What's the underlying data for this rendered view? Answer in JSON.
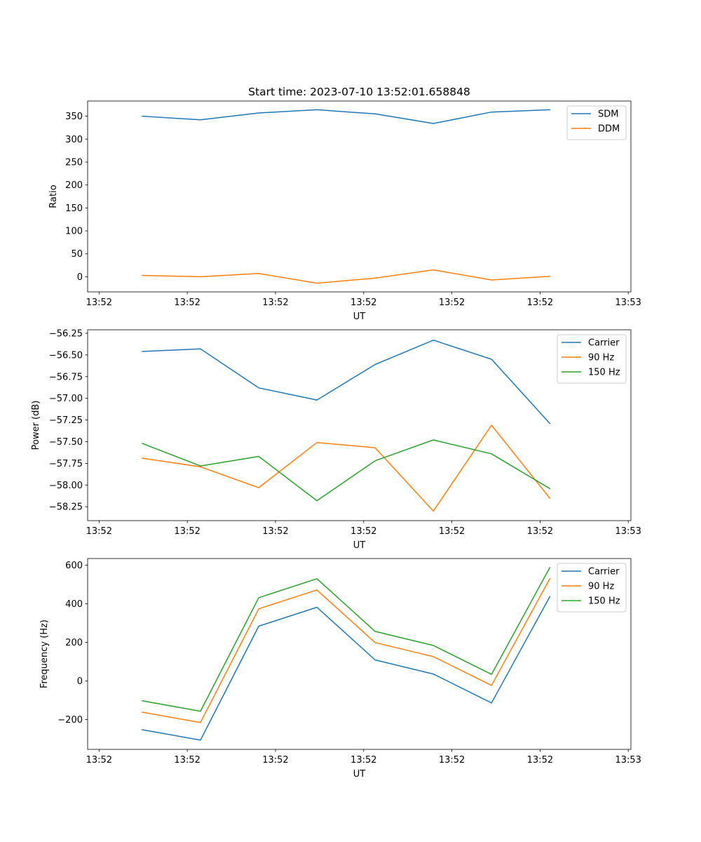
{
  "chart_data": [
    {
      "type": "line",
      "title": "Start time: 2023-07-10 13:52:01.658848",
      "xlabel": "UT",
      "ylabel": "Ratio",
      "x_tick_labels": [
        "13:52",
        "13:52",
        "13:52",
        "13:52",
        "13:52",
        "13:52",
        "13:53"
      ],
      "x_ticks": [
        0,
        1,
        2,
        3,
        4,
        5,
        6
      ],
      "xlim": [
        -0.13,
        6.03
      ],
      "ylim": [
        -33,
        383
      ],
      "y_ticks": [
        0,
        50,
        100,
        150,
        200,
        250,
        300,
        350
      ],
      "y_tick_labels": [
        "0",
        "50",
        "100",
        "150",
        "200",
        "250",
        "300",
        "350"
      ],
      "legend_position": "upper right",
      "x": [
        0.49,
        1.15,
        1.81,
        2.47,
        3.13,
        3.79,
        4.45,
        5.11
      ],
      "series": [
        {
          "name": "SDM",
          "color": "#1f77b4",
          "values": [
            350,
            342,
            357,
            364,
            355,
            334,
            359,
            364
          ]
        },
        {
          "name": "DDM",
          "color": "#ff7f0e",
          "values": [
            3,
            0,
            7,
            -14,
            -3,
            15,
            -7,
            1
          ]
        }
      ]
    },
    {
      "type": "line",
      "title": "",
      "xlabel": "UT",
      "ylabel": "Power (dB)",
      "x_tick_labels": [
        "13:52",
        "13:52",
        "13:52",
        "13:52",
        "13:52",
        "13:52",
        "13:53"
      ],
      "x_ticks": [
        0,
        1,
        2,
        3,
        4,
        5,
        6
      ],
      "xlim": [
        -0.13,
        6.03
      ],
      "ylim": [
        -58.41,
        -56.21
      ],
      "y_ticks": [
        -56.25,
        -56.5,
        -56.75,
        -57.0,
        -57.25,
        -57.5,
        -57.75,
        -58.0,
        -58.25
      ],
      "y_tick_labels": [
        "−56.25",
        "−56.50",
        "−56.75",
        "−57.00",
        "−57.25",
        "−57.50",
        "−57.75",
        "−58.00",
        "−58.25"
      ],
      "legend_position": "upper right",
      "x": [
        0.49,
        1.15,
        1.81,
        2.47,
        3.13,
        3.79,
        4.45,
        5.11
      ],
      "series": [
        {
          "name": "Carrier",
          "color": "#1f77b4",
          "values": [
            -56.46,
            -56.43,
            -56.88,
            -57.02,
            -56.61,
            -56.33,
            -56.55,
            -57.29
          ]
        },
        {
          "name": "90 Hz",
          "color": "#ff7f0e",
          "values": [
            -57.69,
            -57.79,
            -58.03,
            -57.51,
            -57.57,
            -58.3,
            -57.31,
            -58.15
          ]
        },
        {
          "name": "150 Hz",
          "color": "#2ca02c",
          "values": [
            -57.52,
            -57.78,
            -57.67,
            -58.18,
            -57.72,
            -57.48,
            -57.64,
            -58.04
          ]
        }
      ]
    },
    {
      "type": "line",
      "title": "",
      "xlabel": "UT",
      "ylabel": "Frequency (Hz)",
      "x_tick_labels": [
        "13:52",
        "13:52",
        "13:52",
        "13:52",
        "13:52",
        "13:52",
        "13:53"
      ],
      "x_ticks": [
        0,
        1,
        2,
        3,
        4,
        5,
        6
      ],
      "xlim": [
        -0.13,
        6.03
      ],
      "ylim": [
        -355,
        635
      ],
      "y_ticks": [
        -200,
        0,
        200,
        400,
        600
      ],
      "y_tick_labels": [
        "−200",
        "0",
        "200",
        "400",
        "600"
      ],
      "legend_position": "upper right",
      "x": [
        0.49,
        1.15,
        1.81,
        2.47,
        3.13,
        3.79,
        4.45,
        5.11
      ],
      "series": [
        {
          "name": "Carrier",
          "color": "#1f77b4",
          "values": [
            -253,
            -307,
            284,
            382,
            109,
            36,
            -114,
            437
          ]
        },
        {
          "name": "90 Hz",
          "color": "#ff7f0e",
          "values": [
            -162,
            -216,
            374,
            472,
            199,
            126,
            -23,
            530
          ]
        },
        {
          "name": "150 Hz",
          "color": "#2ca02c",
          "values": [
            -103,
            -157,
            432,
            530,
            257,
            184,
            34,
            588
          ]
        }
      ]
    }
  ]
}
